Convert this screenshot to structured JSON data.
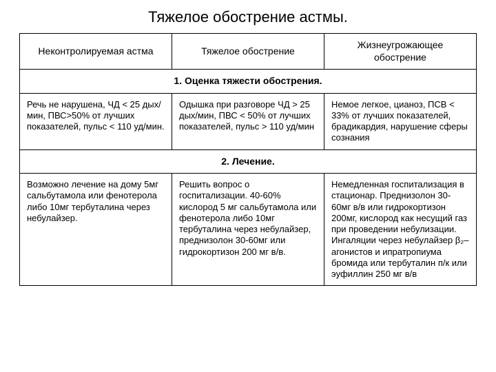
{
  "title": "Тяжелое обострение астмы.",
  "headers": {
    "col1": "Неконтролируемая астма",
    "col2": "Тяжелое обострение",
    "col3": "Жизнеугрожающее обострение"
  },
  "section1": "1. Оценка тяжести обострения.",
  "row1": {
    "col1": "Речь не нарушена, ЧД < 25 дых/мин, ПВС>50% от лучших показателей, пульс < 110 уд/мин.",
    "col2": "Одышка при разговоре ЧД > 25 дых/мин, ПВС < 50% от лучших показателей, пульс > 110 уд/мин",
    "col3": "Немое легкое, цианоз, ПСВ < 33%  от лучших показателей, брадикардия, нарушение сферы сознания"
  },
  "section2": "2. Лечение.",
  "row2": {
    "col1": "Возможно лечение на дому 5мг сальбутамола или фенотерола либо 10мг тербуталина через небулайзер.",
    "col2": "Решить вопрос о госпитализации. 40-60% кислород 5 мг сальбутамола или фенотерола либо 10мг тербуталина через небулайзер, преднизолон 30-60мг или гидрокортизон 200 мг в/в.",
    "col3": "Немедленная госпитализация в стационар. Преднизолон 30-60мг в/в или гидрокортизон 200мг, кислород как несущий газ при проведении небулизации. Ингаляции через небулайзер β₂– агонистов и ипратропиума бромида или тербуталин п/к или эуфиллин 250 мг в/в"
  }
}
